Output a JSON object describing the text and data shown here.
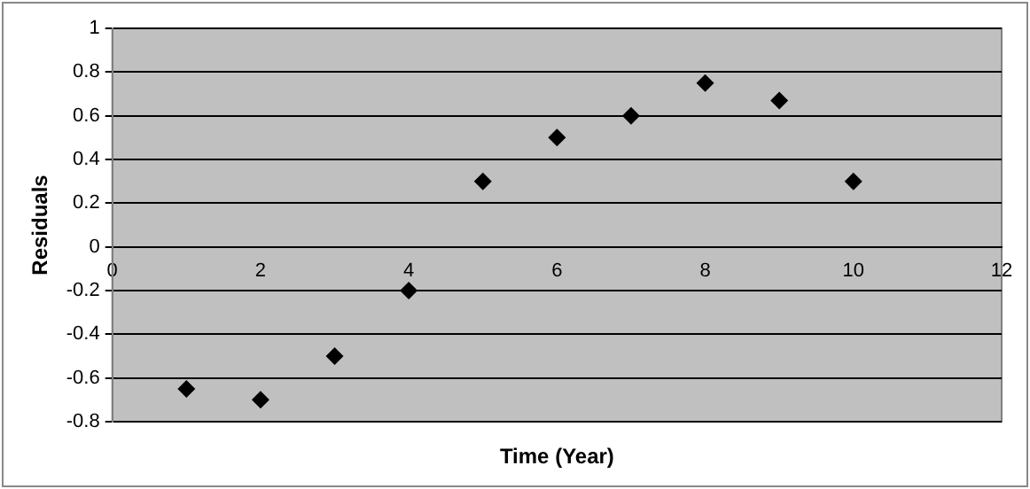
{
  "chart_data": {
    "type": "scatter",
    "xlabel": "Time (Year)",
    "ylabel": "Residuals",
    "x": [
      1,
      2,
      3,
      4,
      5,
      6,
      7,
      8,
      9,
      10
    ],
    "series": [
      {
        "color": "#000000",
        "values": [
          -0.65,
          -0.7,
          -0.5,
          -0.2,
          0.3,
          0.5,
          0.6,
          0.75,
          0.67,
          0.3
        ]
      }
    ],
    "xlim": [
      0,
      12
    ],
    "xticks": [
      0,
      2,
      4,
      6,
      8,
      10,
      12
    ],
    "ylim": [
      -0.8,
      1
    ],
    "yticks": [
      -0.8,
      -0.6,
      -0.4,
      -0.2,
      0,
      0.2,
      0.4,
      0.6,
      0.8,
      1
    ],
    "grid": "y",
    "legend": false,
    "marker": "diamond"
  }
}
